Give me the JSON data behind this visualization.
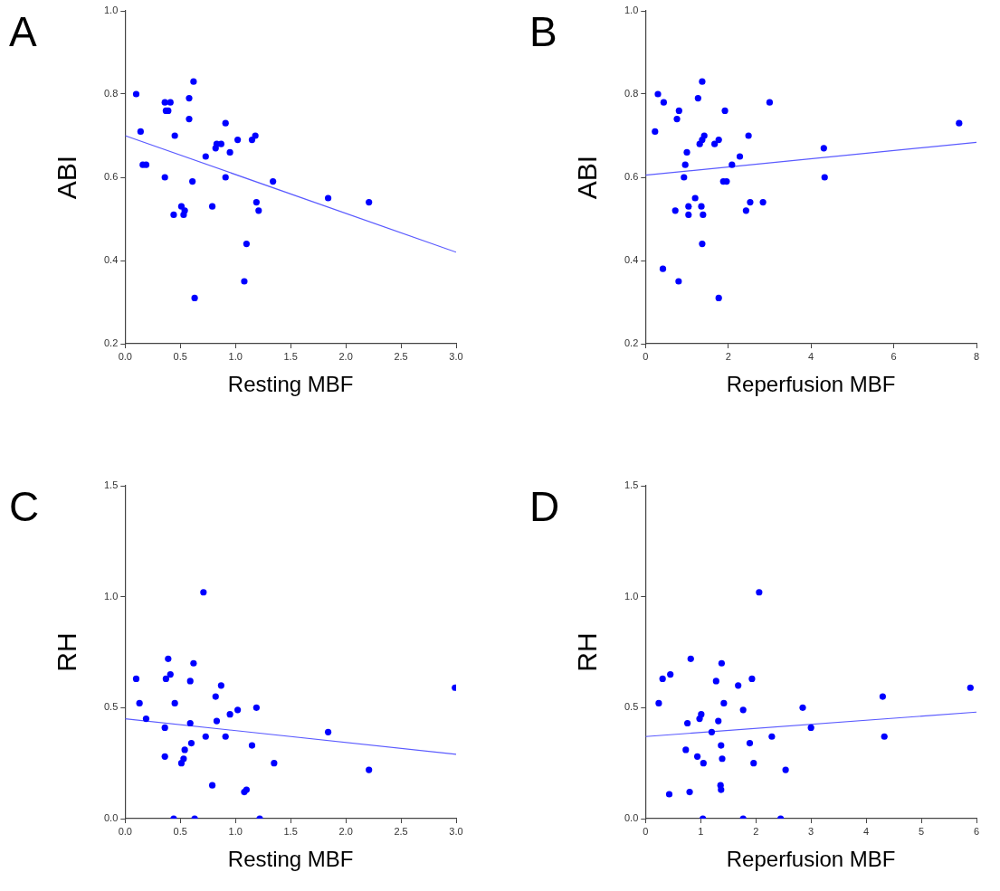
{
  "chart_data": [
    {
      "type": "scatter",
      "title": "A",
      "xlabel": "Resting MBF",
      "ylabel": "ABI",
      "marker": "circle",
      "grid": false,
      "legend": false,
      "xlim": [
        0,
        3
      ],
      "xticks": [
        {
          "value": 0,
          "label": "0.0"
        },
        {
          "value": 0.5,
          "label": "0.5"
        },
        {
          "value": 1,
          "label": "1.0"
        },
        {
          "value": 1.5,
          "label": "1.5"
        },
        {
          "value": 2,
          "label": "2.0"
        },
        {
          "value": 2.5,
          "label": "2.5"
        },
        {
          "value": 3,
          "label": "3.0"
        }
      ],
      "ylim": [
        0.2,
        1
      ],
      "yticks": [
        {
          "value": 0.2,
          "label": "0.2"
        },
        {
          "value": 0.4,
          "label": "0.4"
        },
        {
          "value": 0.6,
          "label": "0.6"
        },
        {
          "value": 0.8,
          "label": "0.8"
        },
        {
          "value": 1,
          "label": "1.0"
        }
      ],
      "series": [
        {
          "color": "#0000ff",
          "x": [
            0.1,
            0.14,
            0.16,
            0.19,
            0.36,
            0.41,
            0.37,
            0.39,
            0.45,
            0.36,
            0.44,
            0.51,
            0.54,
            0.53,
            0.62,
            0.58,
            0.58,
            0.61,
            0.63,
            0.73,
            0.79,
            0.82,
            0.83,
            0.87,
            0.91,
            0.91,
            0.95,
            1.02,
            1.08,
            1.1,
            1.15,
            1.18,
            1.19,
            1.21,
            1.34,
            1.84,
            2.21
          ],
          "values": [
            0.8,
            0.71,
            0.63,
            0.63,
            0.78,
            0.78,
            0.76,
            0.76,
            0.7,
            0.6,
            0.51,
            0.53,
            0.52,
            0.51,
            0.83,
            0.79,
            0.74,
            0.59,
            0.31,
            0.65,
            0.53,
            0.67,
            0.68,
            0.68,
            0.73,
            0.6,
            0.66,
            0.69,
            0.35,
            0.44,
            0.69,
            0.7,
            0.54,
            0.52,
            0.59,
            0.55,
            0.54
          ]
        },
        {
          "type": "line",
          "color": "#5a5aff",
          "marker": "none",
          "x": [
            0,
            3
          ],
          "values": [
            0.7,
            0.42
          ]
        }
      ]
    },
    {
      "type": "scatter",
      "title": "B",
      "xlabel": "Reperfusion MBF",
      "ylabel": "ABI",
      "marker": "circle",
      "grid": false,
      "legend": false,
      "xlim": [
        0,
        8
      ],
      "xticks": [
        0,
        2,
        4,
        6,
        8
      ],
      "ylim": [
        0.2,
        1
      ],
      "yticks": [
        {
          "value": 0.2,
          "label": "0.2"
        },
        {
          "value": 0.4,
          "label": "0.4"
        },
        {
          "value": 0.6,
          "label": "0.6"
        },
        {
          "value": 0.8,
          "label": "0.8"
        },
        {
          "value": 1,
          "label": "1.0"
        }
      ],
      "series": [
        {
          "color": "#0000ff",
          "x": [
            0.23,
            0.3,
            0.44,
            0.42,
            0.72,
            0.76,
            0.81,
            0.8,
            0.93,
            0.96,
            1.0,
            1.04,
            1.04,
            1.2,
            1.27,
            1.31,
            1.37,
            1.42,
            1.37,
            1.35,
            1.39,
            1.37,
            1.67,
            1.77,
            1.77,
            1.88,
            1.96,
            1.92,
            2.09,
            2.28,
            2.43,
            2.49,
            2.53,
            2.84,
            3.0,
            4.31,
            4.33,
            7.58
          ],
          "values": [
            0.71,
            0.8,
            0.78,
            0.38,
            0.52,
            0.74,
            0.76,
            0.35,
            0.6,
            0.63,
            0.66,
            0.53,
            0.51,
            0.55,
            0.79,
            0.68,
            0.69,
            0.7,
            0.83,
            0.53,
            0.51,
            0.44,
            0.68,
            0.69,
            0.31,
            0.59,
            0.59,
            0.76,
            0.63,
            0.65,
            0.52,
            0.7,
            0.54,
            0.54,
            0.78,
            0.67,
            0.6,
            0.73
          ]
        },
        {
          "type": "line",
          "color": "#5a5aff",
          "marker": "none",
          "x": [
            0,
            8
          ],
          "values": [
            0.605,
            0.684
          ]
        }
      ]
    },
    {
      "type": "scatter",
      "title": "C",
      "xlabel": "Resting MBF",
      "ylabel": "RH",
      "marker": "circle",
      "grid": false,
      "legend": false,
      "xlim": [
        0,
        3
      ],
      "xticks": [
        {
          "value": 0,
          "label": "0.0"
        },
        {
          "value": 0.5,
          "label": "0.5"
        },
        {
          "value": 1,
          "label": "1.0"
        },
        {
          "value": 1.5,
          "label": "1.5"
        },
        {
          "value": 2,
          "label": "2.0"
        },
        {
          "value": 2.5,
          "label": "2.5"
        },
        {
          "value": 3,
          "label": "3.0"
        }
      ],
      "ylim": [
        0,
        1.5
      ],
      "yticks": [
        {
          "value": 0,
          "label": "0.0"
        },
        {
          "value": 0.5,
          "label": "0.5"
        },
        {
          "value": 1,
          "label": "1.0"
        },
        {
          "value": 1.5,
          "label": "1.5"
        }
      ],
      "series": [
        {
          "color": "#0000ff",
          "x": [
            0.1,
            0.13,
            0.19,
            0.36,
            0.36,
            0.37,
            0.39,
            0.41,
            0.45,
            0.44,
            0.51,
            0.53,
            0.54,
            0.59,
            0.59,
            0.6,
            0.62,
            0.63,
            0.71,
            0.73,
            0.79,
            0.82,
            0.83,
            0.87,
            0.91,
            0.95,
            1.02,
            1.08,
            1.1,
            1.15,
            1.19,
            1.22,
            1.35,
            1.84,
            2.21,
            2.99
          ],
          "values": [
            0.63,
            0.52,
            0.45,
            0.28,
            0.41,
            0.63,
            0.72,
            0.65,
            0.52,
            0.0,
            0.25,
            0.27,
            0.31,
            0.62,
            0.43,
            0.34,
            0.7,
            0.0,
            1.02,
            0.37,
            0.15,
            0.55,
            0.44,
            0.6,
            0.37,
            0.47,
            0.49,
            0.12,
            0.13,
            0.33,
            0.5,
            0.0,
            0.25,
            0.39,
            0.22,
            0.59
          ]
        },
        {
          "type": "line",
          "color": "#5a5aff",
          "marker": "none",
          "x": [
            0,
            3
          ],
          "values": [
            0.45,
            0.29
          ]
        }
      ]
    },
    {
      "type": "scatter",
      "title": "D",
      "xlabel": "Reperfusion MBF",
      "ylabel": "RH",
      "marker": "circle",
      "grid": false,
      "legend": false,
      "xlim": [
        0,
        6
      ],
      "xticks": [
        0,
        1,
        2,
        3,
        4,
        5,
        6
      ],
      "ylim": [
        0,
        1.5
      ],
      "yticks": [
        {
          "value": 0,
          "label": "0.0"
        },
        {
          "value": 0.5,
          "label": "0.5"
        },
        {
          "value": 1,
          "label": "1.0"
        },
        {
          "value": 1.5,
          "label": "1.5"
        }
      ],
      "series": [
        {
          "color": "#0000ff",
          "x": [
            0.24,
            0.31,
            0.43,
            0.45,
            0.73,
            0.76,
            0.8,
            0.82,
            0.94,
            0.98,
            1.01,
            1.04,
            1.05,
            1.2,
            1.28,
            1.32,
            1.37,
            1.36,
            1.37,
            1.38,
            1.39,
            1.42,
            1.68,
            1.77,
            1.77,
            1.89,
            1.93,
            1.96,
            2.06,
            2.29,
            2.45,
            2.54,
            2.85,
            3.0,
            4.3,
            4.33,
            5.89
          ],
          "values": [
            0.52,
            0.63,
            0.11,
            0.65,
            0.31,
            0.43,
            0.12,
            0.72,
            0.28,
            0.45,
            0.47,
            0.0,
            0.25,
            0.39,
            0.62,
            0.44,
            0.33,
            0.15,
            0.13,
            0.7,
            0.27,
            0.52,
            0.6,
            0.49,
            0.0,
            0.34,
            0.63,
            0.25,
            1.02,
            0.37,
            0.0,
            0.22,
            0.5,
            0.41,
            0.55,
            0.37,
            0.59
          ]
        },
        {
          "type": "line",
          "color": "#5a5aff",
          "marker": "none",
          "x": [
            0,
            6
          ],
          "values": [
            0.37,
            0.48
          ]
        }
      ]
    }
  ]
}
